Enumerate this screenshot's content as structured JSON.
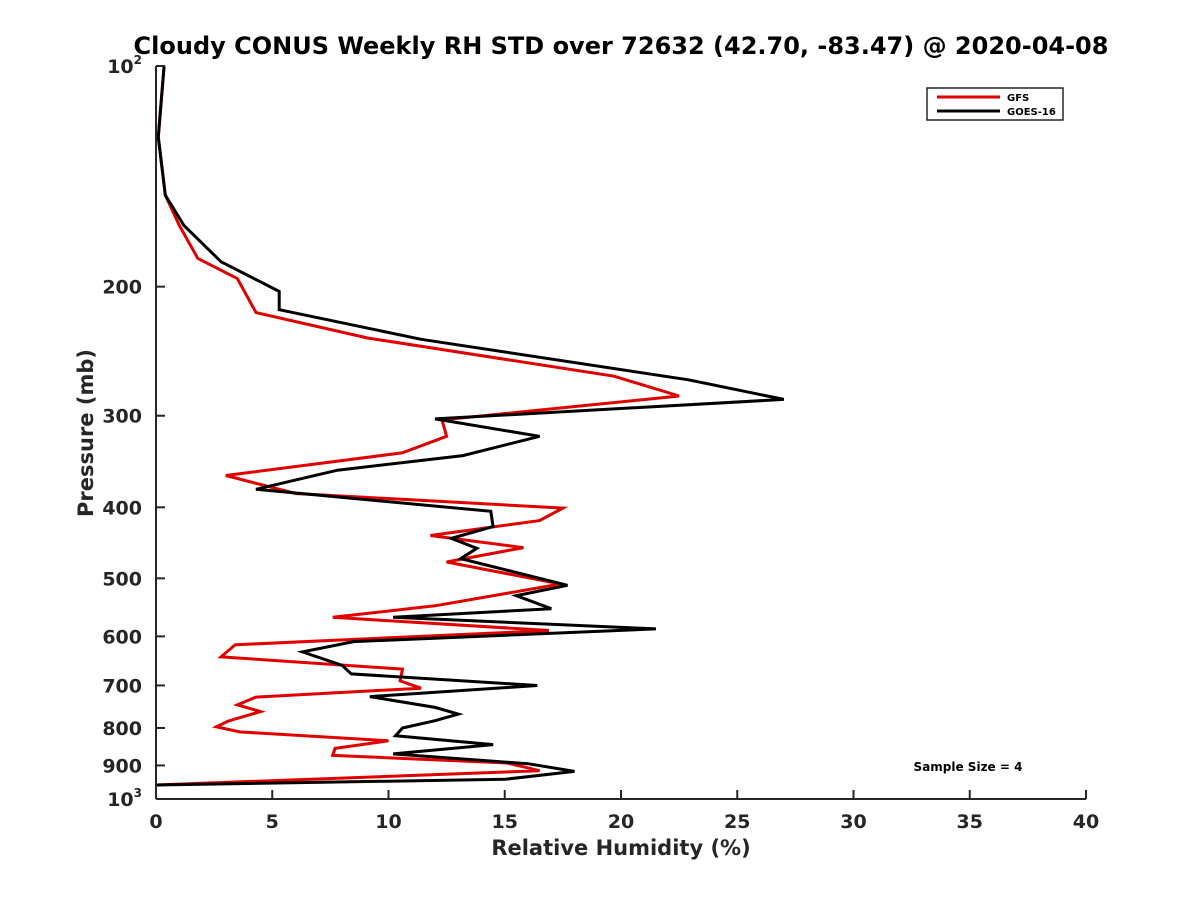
{
  "chart_data": {
    "type": "line",
    "title": "Cloudy CONUS Weekly RH STD over 72632 (42.70, -83.47) @ 2020-04-08",
    "xlabel": "Relative Humidity (%)",
    "ylabel": "Pressure (mb)",
    "xlim": [
      0,
      40
    ],
    "ylim": [
      100,
      1000
    ],
    "y_scale": "log",
    "y_reversed": true,
    "grid": false,
    "legend_position": "top-right",
    "x_ticks": [
      "0",
      "5",
      "10",
      "15",
      "20",
      "25",
      "30",
      "35",
      "40"
    ],
    "y_ticks": [
      {
        "value": 100,
        "base": "10",
        "exp": "2"
      },
      {
        "value": 200,
        "label": "200"
      },
      {
        "value": 300,
        "label": "300"
      },
      {
        "value": 400,
        "label": "400"
      },
      {
        "value": 500,
        "label": "500"
      },
      {
        "value": 600,
        "label": "600"
      },
      {
        "value": 700,
        "label": "700"
      },
      {
        "value": 800,
        "label": "800"
      },
      {
        "value": 900,
        "label": "900"
      },
      {
        "value": 1000,
        "base": "10",
        "exp": "3"
      }
    ],
    "annotation": "Sample Size = 4",
    "series": [
      {
        "name": "GFS",
        "color": "#e00000",
        "points": [
          [
            0.35,
            100
          ],
          [
            0.1,
            125
          ],
          [
            0.4,
            150
          ],
          [
            1.0,
            165
          ],
          [
            1.8,
            183
          ],
          [
            3.5,
            195
          ],
          [
            4.3,
            217
          ],
          [
            9.1,
            235
          ],
          [
            19.7,
            265
          ],
          [
            22.5,
            282
          ],
          [
            12.3,
            304
          ],
          [
            12.5,
            320
          ],
          [
            10.6,
            337
          ],
          [
            3.0,
            362
          ],
          [
            6.0,
            383
          ],
          [
            17.5,
            401
          ],
          [
            16.5,
            417
          ],
          [
            11.8,
            437
          ],
          [
            15.8,
            454
          ],
          [
            12.5,
            475
          ],
          [
            17.4,
            509
          ],
          [
            12.0,
            545
          ],
          [
            7.6,
            565
          ],
          [
            16.9,
            589
          ],
          [
            3.4,
            616
          ],
          [
            2.8,
            640
          ],
          [
            10.6,
            665
          ],
          [
            10.5,
            690
          ],
          [
            11.4,
            706
          ],
          [
            4.3,
            726
          ],
          [
            3.5,
            744
          ],
          [
            4.5,
            760
          ],
          [
            3.1,
            783
          ],
          [
            2.6,
            797
          ],
          [
            3.6,
            810
          ],
          [
            10.0,
            833
          ],
          [
            7.7,
            853
          ],
          [
            7.6,
            872
          ],
          [
            15.1,
            893
          ],
          [
            16.5,
            915
          ],
          [
            0.0,
            957
          ]
        ]
      },
      {
        "name": "GOES-16",
        "color": "#000000",
        "points": [
          [
            0.35,
            100
          ],
          [
            0.1,
            125
          ],
          [
            0.4,
            150
          ],
          [
            1.2,
            165
          ],
          [
            2.8,
            185
          ],
          [
            5.3,
            203
          ],
          [
            5.3,
            215
          ],
          [
            11.4,
            236
          ],
          [
            22.9,
            268
          ],
          [
            27.0,
            285
          ],
          [
            12.0,
            303
          ],
          [
            16.5,
            320
          ],
          [
            13.2,
            340
          ],
          [
            7.8,
            356
          ],
          [
            4.3,
            378
          ],
          [
            14.4,
            405
          ],
          [
            14.5,
            425
          ],
          [
            12.7,
            441
          ],
          [
            13.8,
            455
          ],
          [
            13.1,
            470
          ],
          [
            17.7,
            511
          ],
          [
            15.5,
            528
          ],
          [
            17.0,
            550
          ],
          [
            10.2,
            565
          ],
          [
            21.5,
            586
          ],
          [
            8.5,
            610
          ],
          [
            6.3,
            630
          ],
          [
            8.0,
            657
          ],
          [
            8.4,
            675
          ],
          [
            16.4,
            700
          ],
          [
            9.2,
            725
          ],
          [
            12.0,
            750
          ],
          [
            13.0,
            766
          ],
          [
            12.0,
            782
          ],
          [
            10.6,
            800
          ],
          [
            10.3,
            820
          ],
          [
            14.5,
            843
          ],
          [
            10.2,
            868
          ],
          [
            16.0,
            895
          ],
          [
            18.0,
            917
          ],
          [
            15.0,
            940
          ],
          [
            0.0,
            957
          ]
        ]
      }
    ]
  }
}
